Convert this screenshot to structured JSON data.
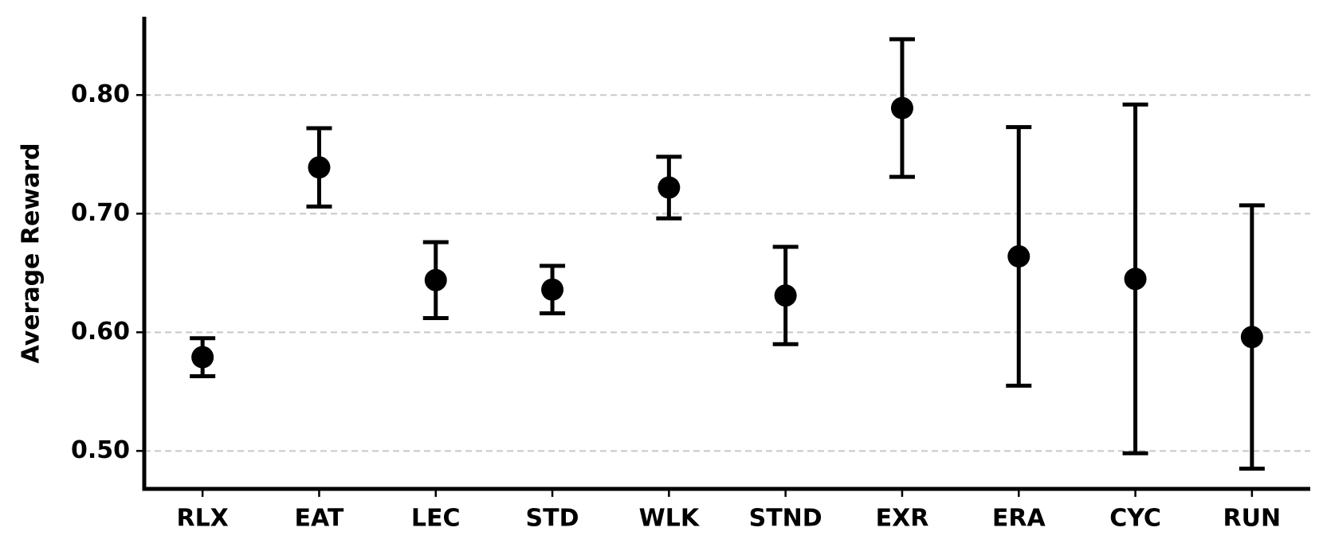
{
  "chart_data": {
    "type": "errorbar",
    "y_label": "Average Reward",
    "categories": [
      "RLX",
      "EAT",
      "LEC",
      "STD",
      "WLK",
      "STND",
      "EXR",
      "ERA",
      "CYC",
      "RUN"
    ],
    "values": [
      0.579,
      0.739,
      0.644,
      0.636,
      0.722,
      0.631,
      0.789,
      0.664,
      0.645,
      0.596
    ],
    "errors": [
      0.016,
      0.033,
      0.032,
      0.02,
      0.026,
      0.041,
      0.058,
      0.109,
      0.147,
      0.111
    ],
    "color": "#000000",
    "ylim": [
      0.468,
      0.866
    ],
    "yticks": [
      {
        "value": 0.5,
        "label": "0.50"
      },
      {
        "value": 0.6,
        "label": "0.60"
      },
      {
        "value": 0.7,
        "label": "0.70"
      },
      {
        "value": 0.8,
        "label": "0.80"
      }
    ],
    "grid": true
  }
}
